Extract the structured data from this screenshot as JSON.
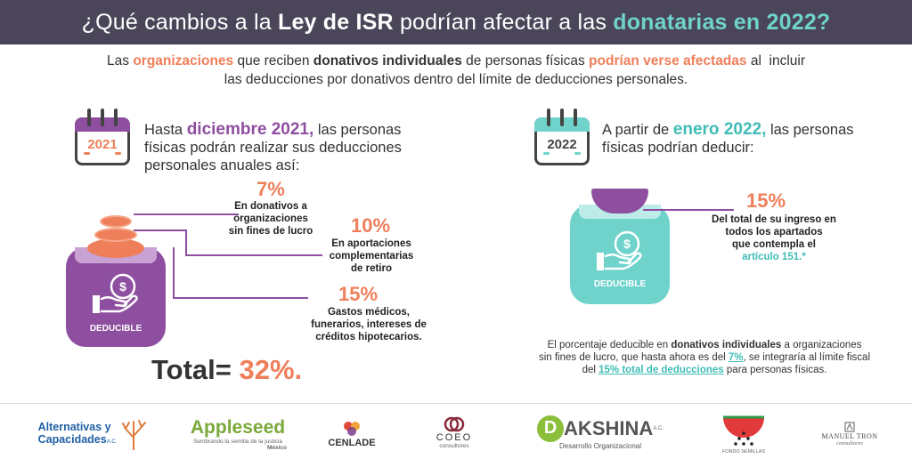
{
  "header": {
    "t1": "¿Qué cambios a la ",
    "t2": "Ley de ISR",
    "t3": " podrían afectar a las ",
    "t4": "donatarias en 2022?"
  },
  "intro": {
    "a": "Las ",
    "b": "organizaciones",
    "c": " que reciben ",
    "d": "donativos individuales",
    "e": " de personas físicas ",
    "f": "podrían verse afectadas",
    "g": " al  incluir",
    "h": "las deducciones por donativos dentro del límite de deducciones personales."
  },
  "left": {
    "cal_year": "2021",
    "lead_a": "Hasta ",
    "lead_b": "diciembre 2021,",
    "lead_c": " las personas",
    "lead_d": "físicas podrán realizar sus deducciones",
    "lead_e": "personales anuales así:",
    "items": [
      {
        "pct": "7%",
        "l1": "En donativos a",
        "l2": "organizaciones",
        "l3": "sin fines de lucro"
      },
      {
        "pct": "10%",
        "l1": "En aportaciones",
        "l2": "complementarias",
        "l3": "de retiro"
      },
      {
        "pct": "15%",
        "l1": "Gastos médicos,",
        "l2": "funerarios, intereses de",
        "l3": "créditos hipotecarios."
      }
    ],
    "jar_label": "DEDUCIBLE",
    "jar_icon": "money-hand-icon",
    "total_label": "Total= ",
    "total_value": "32%."
  },
  "right": {
    "cal_year": "2022",
    "lead_a": "A partir de ",
    "lead_b": "enero 2022,",
    "lead_c": " las personas",
    "lead_d": "físicas podrían deducir:",
    "pct": "15%",
    "d1": "Del total de su ingreso en",
    "d2": "todos los  apartados",
    "d3": "que contempla el",
    "d4": "artículo 151.*",
    "jar_label": "DEDUCIBLE",
    "jar_icon": "money-hand-icon",
    "note": {
      "a": "El porcentaje deducible en ",
      "b": "donativos individuales",
      "c": " a organizaciones",
      "d": "sin fines de lucro, que hasta ahora es del ",
      "e": "7%",
      "f": ", se integraría al límite fiscal",
      "g": "del ",
      "h": "15% total de deducciones",
      "i": " para personas físicas."
    }
  },
  "logos": {
    "alt_l1": "Alternativas y",
    "alt_l2": "Capacidades",
    "alt_ac": "A.C.",
    "apple": "Appleseed",
    "apple_sub": "Sembrando la semilla de la justicia",
    "apple_mx": "México",
    "cenlade": "CENLADE",
    "coeo": "COEO",
    "coeo_sub": "consultores",
    "dakshina": "AKSHINA",
    "dakshina_ac": "A.C.",
    "dakshina_sub": "Desarrollo Organizacional",
    "fondo": "FONDO SEMILLAS",
    "manueltron": "MANUEL TRON",
    "manueltron_sub": "consultores"
  },
  "colors": {
    "purple": "#8f4fa0",
    "orange": "#ee7f5a",
    "teal": "#6fd3cc",
    "header_bg": "#4a4558"
  }
}
